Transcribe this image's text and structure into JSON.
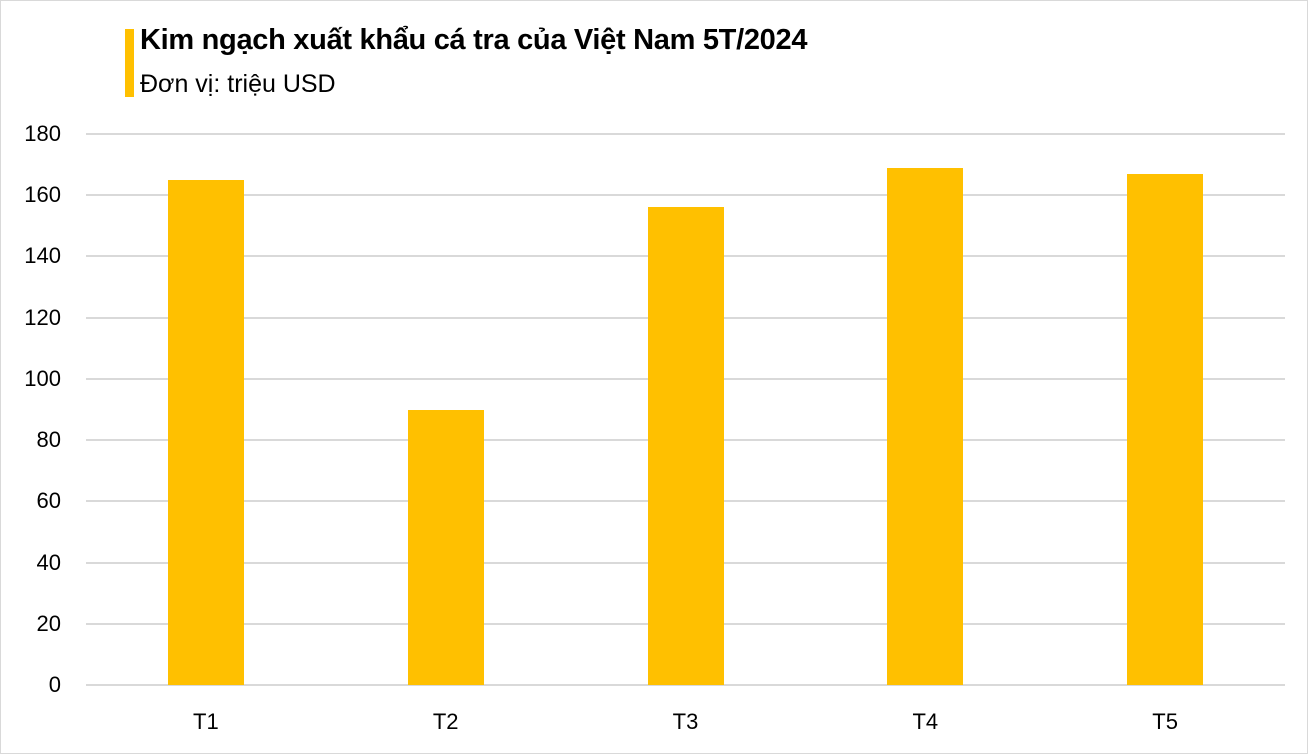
{
  "chart_data": {
    "type": "bar",
    "title": "Kim ngạch xuất khẩu cá tra của Việt Nam 5T/2024",
    "subtitle": "Đơn vị: triệu USD",
    "xlabel": "",
    "ylabel": "triệu USD",
    "categories": [
      "T1",
      "T2",
      "T3",
      "T4",
      "T5"
    ],
    "values": [
      165,
      90,
      156,
      169,
      167
    ],
    "ylim": [
      0,
      180
    ],
    "yticks": [
      "0",
      "20",
      "40",
      "60",
      "80",
      "100",
      "120",
      "140",
      "160",
      "180"
    ],
    "grid": true,
    "legend": "none",
    "bar_color": "#ffc000",
    "grid_color": "#d9d9d9"
  }
}
